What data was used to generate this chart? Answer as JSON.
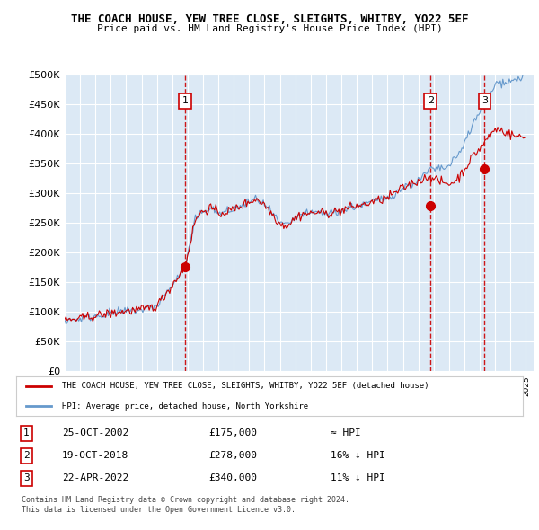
{
  "title": "THE COACH HOUSE, YEW TREE CLOSE, SLEIGHTS, WHITBY, YO22 5EF",
  "subtitle": "Price paid vs. HM Land Registry's House Price Index (HPI)",
  "x_start_year": 1995,
  "x_end_year": 2025,
  "ylim": [
    0,
    500000
  ],
  "yticks": [
    0,
    50000,
    100000,
    150000,
    200000,
    250000,
    300000,
    350000,
    400000,
    450000,
    500000
  ],
  "sales": [
    {
      "date_num": 2002.82,
      "price": 175000,
      "label": "1"
    },
    {
      "date_num": 2018.8,
      "price": 278000,
      "label": "2"
    },
    {
      "date_num": 2022.31,
      "price": 340000,
      "label": "3"
    }
  ],
  "legend_line1": "THE COACH HOUSE, YEW TREE CLOSE, SLEIGHTS, WHITBY, YO22 5EF (detached house)",
  "legend_line2": "HPI: Average price, detached house, North Yorkshire",
  "table": [
    {
      "num": "1",
      "date": "25-OCT-2002",
      "price": "£175,000",
      "vs_hpi": "≈ HPI"
    },
    {
      "num": "2",
      "date": "19-OCT-2018",
      "price": "£278,000",
      "vs_hpi": "16% ↓ HPI"
    },
    {
      "num": "3",
      "date": "22-APR-2022",
      "price": "£340,000",
      "vs_hpi": "11% ↓ HPI"
    }
  ],
  "footnote1": "Contains HM Land Registry data © Crown copyright and database right 2024.",
  "footnote2": "This data is licensed under the Open Government Licence v3.0.",
  "hpi_color": "#6699cc",
  "price_color": "#cc0000",
  "bg_color": "#dce9f5",
  "plot_bg": "#dce9f5"
}
